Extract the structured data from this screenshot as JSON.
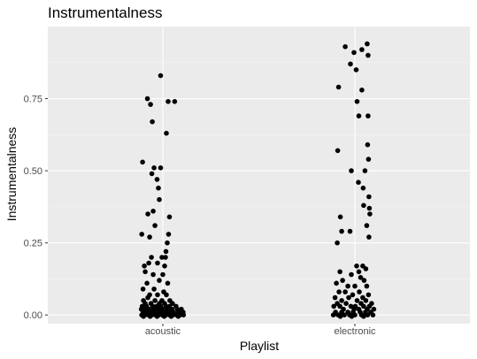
{
  "chart_data": {
    "type": "scatter",
    "title": "Instrumentalness",
    "xlabel": "Playlist",
    "ylabel": "Instrumentalness",
    "categories": [
      "acoustic",
      "electronic"
    ],
    "ylim": [
      -0.03,
      1.0
    ],
    "y_ticks": [
      {
        "value": 0.0,
        "label": "0.00"
      },
      {
        "value": 0.25,
        "label": "0.25"
      },
      {
        "value": 0.5,
        "label": "0.50"
      },
      {
        "value": 0.75,
        "label": "0.75"
      }
    ],
    "grid": true,
    "panel_color": "#ebebeb",
    "point_color": "#000000",
    "points": [
      {
        "category": "acoustic",
        "jitter": -0.05,
        "y": 0.83
      },
      {
        "category": "acoustic",
        "jitter": -0.35,
        "y": 0.75
      },
      {
        "category": "acoustic",
        "jitter": -0.28,
        "y": 0.73
      },
      {
        "category": "acoustic",
        "jitter": 0.27,
        "y": 0.74
      },
      {
        "category": "acoustic",
        "jitter": 0.12,
        "y": 0.74
      },
      {
        "category": "acoustic",
        "jitter": -0.24,
        "y": 0.67
      },
      {
        "category": "acoustic",
        "jitter": 0.08,
        "y": 0.63
      },
      {
        "category": "acoustic",
        "jitter": -0.46,
        "y": 0.53
      },
      {
        "category": "acoustic",
        "jitter": -0.2,
        "y": 0.51
      },
      {
        "category": "acoustic",
        "jitter": -0.05,
        "y": 0.51
      },
      {
        "category": "acoustic",
        "jitter": -0.25,
        "y": 0.49
      },
      {
        "category": "acoustic",
        "jitter": -0.13,
        "y": 0.47
      },
      {
        "category": "acoustic",
        "jitter": -0.1,
        "y": 0.44
      },
      {
        "category": "acoustic",
        "jitter": -0.08,
        "y": 0.4
      },
      {
        "category": "acoustic",
        "jitter": -0.34,
        "y": 0.35
      },
      {
        "category": "acoustic",
        "jitter": -0.22,
        "y": 0.36
      },
      {
        "category": "acoustic",
        "jitter": 0.15,
        "y": 0.34
      },
      {
        "category": "acoustic",
        "jitter": -0.18,
        "y": 0.31
      },
      {
        "category": "acoustic",
        "jitter": -0.48,
        "y": 0.28
      },
      {
        "category": "acoustic",
        "jitter": -0.3,
        "y": 0.27
      },
      {
        "category": "acoustic",
        "jitter": 0.13,
        "y": 0.28
      },
      {
        "category": "acoustic",
        "jitter": 0.1,
        "y": 0.25
      },
      {
        "category": "acoustic",
        "jitter": 0.07,
        "y": 0.22
      },
      {
        "category": "acoustic",
        "jitter": -0.26,
        "y": 0.2
      },
      {
        "category": "acoustic",
        "jitter": -0.02,
        "y": 0.2
      },
      {
        "category": "acoustic",
        "jitter": 0.06,
        "y": 0.2
      },
      {
        "category": "acoustic",
        "jitter": -0.42,
        "y": 0.17
      },
      {
        "category": "acoustic",
        "jitter": -0.32,
        "y": 0.18
      },
      {
        "category": "acoustic",
        "jitter": -0.12,
        "y": 0.18
      },
      {
        "category": "acoustic",
        "jitter": 0.04,
        "y": 0.17
      },
      {
        "category": "acoustic",
        "jitter": -0.4,
        "y": 0.15
      },
      {
        "category": "acoustic",
        "jitter": -0.22,
        "y": 0.14
      },
      {
        "category": "acoustic",
        "jitter": 0.0,
        "y": 0.14
      },
      {
        "category": "acoustic",
        "jitter": -0.08,
        "y": 0.12
      },
      {
        "category": "acoustic",
        "jitter": -0.36,
        "y": 0.11
      },
      {
        "category": "acoustic",
        "jitter": 0.11,
        "y": 0.11
      },
      {
        "category": "acoustic",
        "jitter": -0.45,
        "y": 0.09
      },
      {
        "category": "acoustic",
        "jitter": -0.2,
        "y": 0.09
      },
      {
        "category": "acoustic",
        "jitter": 0.02,
        "y": 0.08
      },
      {
        "category": "acoustic",
        "jitter": -0.3,
        "y": 0.07
      },
      {
        "category": "acoustic",
        "jitter": -0.12,
        "y": 0.07
      },
      {
        "category": "acoustic",
        "jitter": 0.08,
        "y": 0.07
      },
      {
        "category": "acoustic",
        "jitter": -0.44,
        "y": 0.05
      },
      {
        "category": "acoustic",
        "jitter": -0.34,
        "y": 0.06
      },
      {
        "category": "acoustic",
        "jitter": -0.18,
        "y": 0.05
      },
      {
        "category": "acoustic",
        "jitter": -0.02,
        "y": 0.05
      },
      {
        "category": "acoustic",
        "jitter": 0.16,
        "y": 0.05
      },
      {
        "category": "acoustic",
        "jitter": -0.4,
        "y": 0.04
      },
      {
        "category": "acoustic",
        "jitter": -0.27,
        "y": 0.04
      },
      {
        "category": "acoustic",
        "jitter": -0.08,
        "y": 0.04
      },
      {
        "category": "acoustic",
        "jitter": 0.04,
        "y": 0.04
      },
      {
        "category": "acoustic",
        "jitter": 0.22,
        "y": 0.04
      },
      {
        "category": "acoustic",
        "jitter": -0.47,
        "y": 0.03
      },
      {
        "category": "acoustic",
        "jitter": -0.37,
        "y": 0.03
      },
      {
        "category": "acoustic",
        "jitter": -0.23,
        "y": 0.03
      },
      {
        "category": "acoustic",
        "jitter": -0.14,
        "y": 0.03
      },
      {
        "category": "acoustic",
        "jitter": -0.05,
        "y": 0.03
      },
      {
        "category": "acoustic",
        "jitter": 0.07,
        "y": 0.03
      },
      {
        "category": "acoustic",
        "jitter": 0.15,
        "y": 0.03
      },
      {
        "category": "acoustic",
        "jitter": 0.3,
        "y": 0.03
      },
      {
        "category": "acoustic",
        "jitter": -0.49,
        "y": 0.02
      },
      {
        "category": "acoustic",
        "jitter": -0.4,
        "y": 0.02
      },
      {
        "category": "acoustic",
        "jitter": -0.31,
        "y": 0.02
      },
      {
        "category": "acoustic",
        "jitter": -0.2,
        "y": 0.02
      },
      {
        "category": "acoustic",
        "jitter": -0.1,
        "y": 0.02
      },
      {
        "category": "acoustic",
        "jitter": 0.0,
        "y": 0.02
      },
      {
        "category": "acoustic",
        "jitter": 0.11,
        "y": 0.02
      },
      {
        "category": "acoustic",
        "jitter": 0.21,
        "y": 0.02
      },
      {
        "category": "acoustic",
        "jitter": 0.33,
        "y": 0.02
      },
      {
        "category": "acoustic",
        "jitter": 0.42,
        "y": 0.02
      },
      {
        "category": "acoustic",
        "jitter": -0.45,
        "y": 0.01
      },
      {
        "category": "acoustic",
        "jitter": -0.36,
        "y": 0.01
      },
      {
        "category": "acoustic",
        "jitter": -0.26,
        "y": 0.01
      },
      {
        "category": "acoustic",
        "jitter": -0.16,
        "y": 0.01
      },
      {
        "category": "acoustic",
        "jitter": -0.06,
        "y": 0.01
      },
      {
        "category": "acoustic",
        "jitter": 0.04,
        "y": 0.01
      },
      {
        "category": "acoustic",
        "jitter": 0.14,
        "y": 0.01
      },
      {
        "category": "acoustic",
        "jitter": 0.24,
        "y": 0.01
      },
      {
        "category": "acoustic",
        "jitter": 0.35,
        "y": 0.01
      },
      {
        "category": "acoustic",
        "jitter": 0.46,
        "y": 0.01
      },
      {
        "category": "acoustic",
        "jitter": -0.48,
        "y": 0.0
      },
      {
        "category": "acoustic",
        "jitter": -0.41,
        "y": 0.0
      },
      {
        "category": "acoustic",
        "jitter": -0.33,
        "y": 0.0
      },
      {
        "category": "acoustic",
        "jitter": -0.25,
        "y": 0.0
      },
      {
        "category": "acoustic",
        "jitter": -0.17,
        "y": 0.0
      },
      {
        "category": "acoustic",
        "jitter": -0.09,
        "y": 0.0
      },
      {
        "category": "acoustic",
        "jitter": -0.01,
        "y": 0.0
      },
      {
        "category": "acoustic",
        "jitter": 0.07,
        "y": 0.0
      },
      {
        "category": "acoustic",
        "jitter": 0.15,
        "y": 0.0
      },
      {
        "category": "acoustic",
        "jitter": 0.23,
        "y": 0.0
      },
      {
        "category": "acoustic",
        "jitter": 0.31,
        "y": 0.0
      },
      {
        "category": "acoustic",
        "jitter": 0.39,
        "y": 0.0
      },
      {
        "category": "acoustic",
        "jitter": 0.47,
        "y": 0.0
      },
      {
        "category": "acoustic",
        "jitter": -0.44,
        "y": -0.005
      },
      {
        "category": "acoustic",
        "jitter": -0.29,
        "y": -0.005
      },
      {
        "category": "acoustic",
        "jitter": -0.13,
        "y": -0.005
      },
      {
        "category": "acoustic",
        "jitter": 0.03,
        "y": -0.005
      },
      {
        "category": "acoustic",
        "jitter": 0.19,
        "y": -0.005
      },
      {
        "category": "acoustic",
        "jitter": 0.35,
        "y": -0.005
      },
      {
        "category": "electronic",
        "jitter": -0.22,
        "y": 0.93
      },
      {
        "category": "electronic",
        "jitter": -0.02,
        "y": 0.91
      },
      {
        "category": "electronic",
        "jitter": 0.28,
        "y": 0.94
      },
      {
        "category": "electronic",
        "jitter": 0.3,
        "y": 0.9
      },
      {
        "category": "electronic",
        "jitter": 0.16,
        "y": 0.92
      },
      {
        "category": "electronic",
        "jitter": -0.1,
        "y": 0.87
      },
      {
        "category": "electronic",
        "jitter": 0.03,
        "y": 0.85
      },
      {
        "category": "electronic",
        "jitter": -0.37,
        "y": 0.79
      },
      {
        "category": "electronic",
        "jitter": 0.16,
        "y": 0.78
      },
      {
        "category": "electronic",
        "jitter": 0.05,
        "y": 0.74
      },
      {
        "category": "electronic",
        "jitter": 0.09,
        "y": 0.69
      },
      {
        "category": "electronic",
        "jitter": 0.3,
        "y": 0.69
      },
      {
        "category": "electronic",
        "jitter": 0.29,
        "y": 0.59
      },
      {
        "category": "electronic",
        "jitter": -0.39,
        "y": 0.57
      },
      {
        "category": "electronic",
        "jitter": 0.31,
        "y": 0.54
      },
      {
        "category": "electronic",
        "jitter": -0.08,
        "y": 0.5
      },
      {
        "category": "electronic",
        "jitter": 0.23,
        "y": 0.5
      },
      {
        "category": "electronic",
        "jitter": 0.08,
        "y": 0.46
      },
      {
        "category": "electronic",
        "jitter": 0.19,
        "y": 0.44
      },
      {
        "category": "electronic",
        "jitter": 0.32,
        "y": 0.41
      },
      {
        "category": "electronic",
        "jitter": 0.2,
        "y": 0.38
      },
      {
        "category": "electronic",
        "jitter": 0.33,
        "y": 0.37
      },
      {
        "category": "electronic",
        "jitter": 0.34,
        "y": 0.35
      },
      {
        "category": "electronic",
        "jitter": -0.33,
        "y": 0.34
      },
      {
        "category": "electronic",
        "jitter": 0.27,
        "y": 0.31
      },
      {
        "category": "electronic",
        "jitter": -0.3,
        "y": 0.29
      },
      {
        "category": "electronic",
        "jitter": -0.11,
        "y": 0.29
      },
      {
        "category": "electronic",
        "jitter": 0.32,
        "y": 0.27
      },
      {
        "category": "electronic",
        "jitter": -0.4,
        "y": 0.25
      },
      {
        "category": "electronic",
        "jitter": 0.04,
        "y": 0.17
      },
      {
        "category": "electronic",
        "jitter": 0.18,
        "y": 0.17
      },
      {
        "category": "electronic",
        "jitter": 0.25,
        "y": 0.16
      },
      {
        "category": "electronic",
        "jitter": -0.34,
        "y": 0.15
      },
      {
        "category": "electronic",
        "jitter": 0.09,
        "y": 0.15
      },
      {
        "category": "electronic",
        "jitter": -0.08,
        "y": 0.14
      },
      {
        "category": "electronic",
        "jitter": 0.13,
        "y": 0.13
      },
      {
        "category": "electronic",
        "jitter": -0.28,
        "y": 0.12
      },
      {
        "category": "electronic",
        "jitter": 0.21,
        "y": 0.12
      },
      {
        "category": "electronic",
        "jitter": -0.42,
        "y": 0.11
      },
      {
        "category": "electronic",
        "jitter": -0.16,
        "y": 0.1
      },
      {
        "category": "electronic",
        "jitter": 0.0,
        "y": 0.1
      },
      {
        "category": "electronic",
        "jitter": 0.27,
        "y": 0.1
      },
      {
        "category": "electronic",
        "jitter": -0.36,
        "y": 0.08
      },
      {
        "category": "electronic",
        "jitter": -0.22,
        "y": 0.08
      },
      {
        "category": "electronic",
        "jitter": -0.05,
        "y": 0.07
      },
      {
        "category": "electronic",
        "jitter": 0.1,
        "y": 0.08
      },
      {
        "category": "electronic",
        "jitter": 0.31,
        "y": 0.07
      },
      {
        "category": "electronic",
        "jitter": -0.45,
        "y": 0.06
      },
      {
        "category": "electronic",
        "jitter": -0.14,
        "y": 0.06
      },
      {
        "category": "electronic",
        "jitter": 0.18,
        "y": 0.06
      },
      {
        "category": "electronic",
        "jitter": -0.3,
        "y": 0.05
      },
      {
        "category": "electronic",
        "jitter": 0.05,
        "y": 0.05
      },
      {
        "category": "electronic",
        "jitter": 0.25,
        "y": 0.05
      },
      {
        "category": "electronic",
        "jitter": -0.4,
        "y": 0.04
      },
      {
        "category": "electronic",
        "jitter": -0.2,
        "y": 0.04
      },
      {
        "category": "electronic",
        "jitter": 0.14,
        "y": 0.04
      },
      {
        "category": "electronic",
        "jitter": 0.38,
        "y": 0.04
      },
      {
        "category": "electronic",
        "jitter": -0.48,
        "y": 0.03
      },
      {
        "category": "electronic",
        "jitter": -0.34,
        "y": 0.03
      },
      {
        "category": "electronic",
        "jitter": -0.09,
        "y": 0.03
      },
      {
        "category": "electronic",
        "jitter": 0.01,
        "y": 0.03
      },
      {
        "category": "electronic",
        "jitter": 0.2,
        "y": 0.03
      },
      {
        "category": "electronic",
        "jitter": 0.33,
        "y": 0.03
      },
      {
        "category": "electronic",
        "jitter": -0.26,
        "y": 0.02
      },
      {
        "category": "electronic",
        "jitter": -0.02,
        "y": 0.02
      },
      {
        "category": "electronic",
        "jitter": 0.09,
        "y": 0.02
      },
      {
        "category": "electronic",
        "jitter": 0.28,
        "y": 0.02
      },
      {
        "category": "electronic",
        "jitter": 0.43,
        "y": 0.02
      },
      {
        "category": "electronic",
        "jitter": -0.44,
        "y": 0.01
      },
      {
        "category": "electronic",
        "jitter": -0.3,
        "y": 0.01
      },
      {
        "category": "electronic",
        "jitter": -0.16,
        "y": 0.01
      },
      {
        "category": "electronic",
        "jitter": -0.04,
        "y": 0.01
      },
      {
        "category": "electronic",
        "jitter": 0.12,
        "y": 0.01
      },
      {
        "category": "electronic",
        "jitter": 0.24,
        "y": 0.01
      },
      {
        "category": "electronic",
        "jitter": 0.36,
        "y": 0.01
      },
      {
        "category": "electronic",
        "jitter": -0.49,
        "y": 0.0
      },
      {
        "category": "electronic",
        "jitter": -0.38,
        "y": 0.0
      },
      {
        "category": "electronic",
        "jitter": -0.24,
        "y": 0.0
      },
      {
        "category": "electronic",
        "jitter": -0.12,
        "y": 0.0
      },
      {
        "category": "electronic",
        "jitter": 0.0,
        "y": 0.0
      },
      {
        "category": "electronic",
        "jitter": 0.15,
        "y": 0.0
      },
      {
        "category": "electronic",
        "jitter": 0.29,
        "y": 0.0
      },
      {
        "category": "electronic",
        "jitter": 0.41,
        "y": 0.0
      },
      {
        "category": "electronic",
        "jitter": -0.33,
        "y": -0.005
      },
      {
        "category": "electronic",
        "jitter": -0.07,
        "y": -0.005
      },
      {
        "category": "electronic",
        "jitter": 0.2,
        "y": -0.005
      }
    ]
  }
}
